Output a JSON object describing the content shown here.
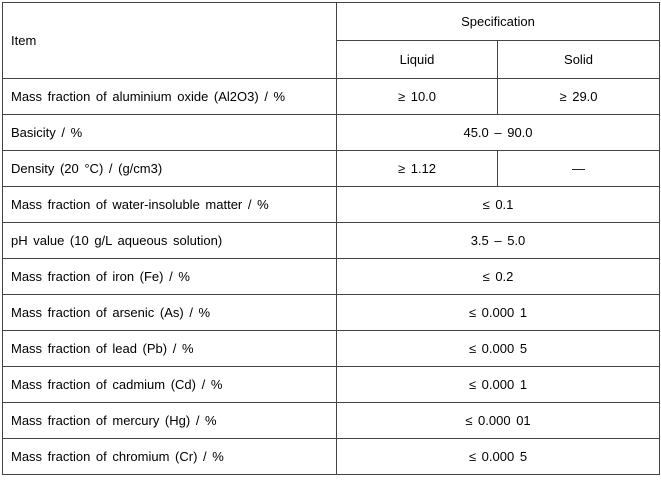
{
  "table": {
    "header": {
      "item": "Item",
      "specification": "Specification",
      "columns": [
        "Liquid",
        "Solid"
      ]
    },
    "rows": [
      {
        "item": "Mass fraction of aluminium oxide (Al2O3) / %",
        "values": [
          "≥ 10.0",
          "≥ 29.0"
        ]
      },
      {
        "item": "Basicity / %",
        "values": [
          "45.0 – 90.0"
        ]
      },
      {
        "item": "Density (20 °C) / (g/cm3)",
        "values": [
          "≥ 1.12",
          "—"
        ]
      },
      {
        "item": "Mass fraction of water-insoluble matter / %",
        "values": [
          "≤ 0.1"
        ]
      },
      {
        "item": "pH value (10 g/L aqueous solution)",
        "values": [
          "3.5 – 5.0"
        ]
      },
      {
        "item": "Mass fraction of iron (Fe) / %",
        "values": [
          "≤ 0.2"
        ]
      },
      {
        "item": "Mass fraction of arsenic (As) / %",
        "values": [
          "≤ 0.000 1"
        ]
      },
      {
        "item": "Mass fraction of lead (Pb) / %",
        "values": [
          "≤ 0.000 5"
        ]
      },
      {
        "item": "Mass fraction of cadmium (Cd) / %",
        "values": [
          "≤ 0.000 1"
        ]
      },
      {
        "item": "Mass fraction of mercury (Hg) / %",
        "values": [
          "≤ 0.000 01"
        ]
      },
      {
        "item": "Mass fraction of chromium (Cr) / %",
        "values": [
          "≤ 0.000 5"
        ]
      }
    ]
  }
}
